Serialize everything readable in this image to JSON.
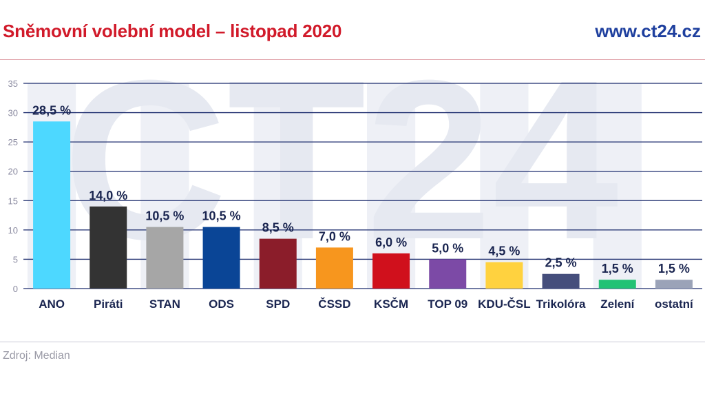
{
  "header": {
    "title": "Sněmovní volební model – listopad 2020",
    "site": "www.ct24.cz"
  },
  "footer": {
    "source": "Zdroj: Median"
  },
  "watermark": "CT24",
  "chart_data": {
    "type": "bar",
    "categories": [
      "ANO",
      "Piráti",
      "STAN",
      "ODS",
      "SPD",
      "ČSSD",
      "KSČM",
      "TOP 09",
      "KDU-ČSL",
      "Trikolóra",
      "Zelení",
      "ostatní"
    ],
    "values": [
      28.5,
      14.0,
      10.5,
      10.5,
      8.5,
      7.0,
      6.0,
      5.0,
      4.5,
      2.5,
      1.5,
      1.5
    ],
    "value_labels": [
      "28,5 %",
      "14,0 %",
      "10,5 %",
      "10,5 %",
      "8,5 %",
      "7,0 %",
      "6,0 %",
      "5,0 %",
      "4,5 %",
      "2,5 %",
      "1,5 %",
      "1,5 %"
    ],
    "colors": [
      "#4dd8ff",
      "#333333",
      "#a6a6a6",
      "#0a4596",
      "#8b1d2a",
      "#f7961e",
      "#d0101c",
      "#7c4aa6",
      "#ffd23f",
      "#454e7c",
      "#22c275",
      "#9ba3b8"
    ],
    "ylim": [
      0,
      35
    ],
    "yticks": [
      0,
      5,
      10,
      15,
      20,
      25,
      30,
      35
    ],
    "grid": true,
    "title": "Sněmovní volební model – listopad 2020"
  }
}
